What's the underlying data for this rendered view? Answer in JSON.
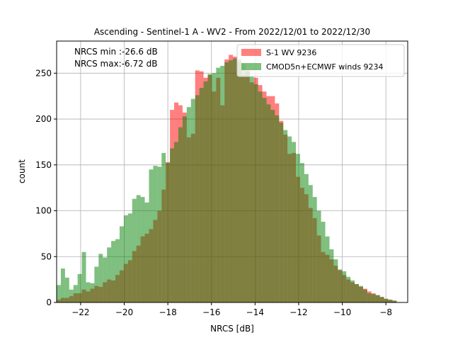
{
  "chart_data": {
    "type": "histogram",
    "title": "Ascending - Sentinel-1 A - WV2 - From 2022/12/01 to 2022/12/30",
    "xlabel": "NRCS [dB]",
    "ylabel": "count",
    "xlim": [
      -23.1,
      -7.0
    ],
    "ylim": [
      0,
      285
    ],
    "grid": true,
    "legend_position": "top-right",
    "x_ticks": [
      -22,
      -20,
      -18,
      -16,
      -14,
      -12,
      -10,
      -8
    ],
    "x_tick_labels": [
      "−22",
      "−20",
      "−18",
      "−16",
      "−14",
      "−12",
      "−10",
      "−8"
    ],
    "y_ticks": [
      0,
      50,
      100,
      150,
      200,
      250
    ],
    "y_tick_labels": [
      "0",
      "50",
      "100",
      "150",
      "200",
      "250"
    ],
    "annotations": [
      "NRCS min :-26.6 dB",
      "NRCS max:-6.72 dB"
    ],
    "bin_start": -23.1,
    "bin_width": 0.1925,
    "series": [
      {
        "name": "S-1 WV 9236",
        "color": "#ff0000",
        "alpha": 0.5,
        "values": [
          3,
          5,
          5,
          7,
          10,
          10,
          14,
          12,
          15,
          18,
          17,
          22,
          25,
          24,
          30,
          35,
          42,
          46,
          56,
          62,
          72,
          75,
          80,
          90,
          100,
          123,
          153,
          210,
          218,
          215,
          207,
          180,
          184,
          253,
          252,
          245,
          248,
          230,
          245,
          215,
          265,
          270,
          268,
          262,
          248,
          253,
          240,
          245,
          237,
          230,
          225,
          225,
          217,
          198,
          183,
          162,
          163,
          137,
          125,
          118,
          103,
          92,
          73,
          55,
          52,
          47,
          40,
          35,
          30,
          25,
          22,
          20,
          17,
          15,
          12,
          10,
          8,
          6,
          4,
          3,
          2
        ]
      },
      {
        "name": "CMOD5n+ECMWF winds 9234",
        "color": "#008000",
        "alpha": 0.5,
        "values": [
          19,
          37,
          27,
          14,
          19,
          31,
          55,
          22,
          21,
          39,
          53,
          49,
          60,
          67,
          69,
          83,
          95,
          97,
          113,
          117,
          115,
          109,
          145,
          149,
          148,
          163,
          152,
          168,
          175,
          191,
          203,
          213,
          222,
          226,
          234,
          241,
          249,
          250,
          256,
          258,
          262,
          264,
          266,
          265,
          260,
          252,
          246,
          238,
          230,
          223,
          216,
          210,
          204,
          196,
          188,
          181,
          175,
          162,
          152,
          140,
          128,
          115,
          100,
          88,
          72,
          58,
          47,
          36,
          34,
          28,
          24,
          20,
          18,
          14,
          10,
          9,
          8,
          6,
          4,
          3,
          2
        ]
      }
    ]
  }
}
